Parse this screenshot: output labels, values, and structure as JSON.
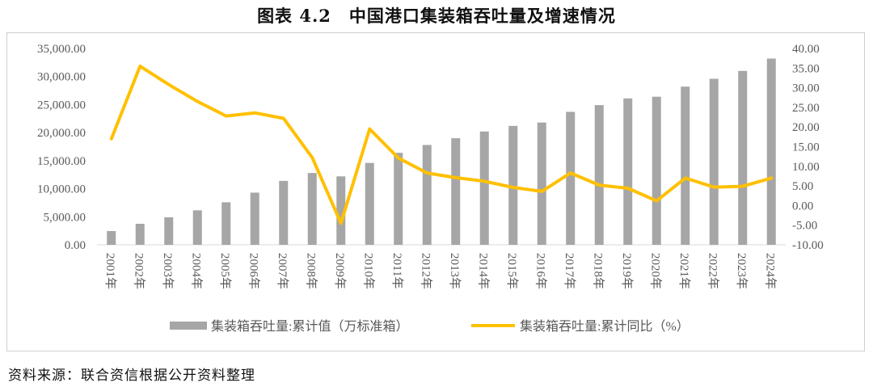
{
  "title": "图表 4.2　中国港口集装箱吞吐量及增速情况",
  "source": "资料来源：联合资信根据公开资料整理",
  "colors": {
    "bar": "#a6a6a6",
    "line": "#ffc000",
    "axis": "#d9d9d9",
    "text": "#595959"
  },
  "chart_data": {
    "type": "bar",
    "categories": [
      "2001年",
      "2002年",
      "2003年",
      "2004年",
      "2005年",
      "2006年",
      "2007年",
      "2008年",
      "2009年",
      "2010年",
      "2011年",
      "2012年",
      "2013年",
      "2014年",
      "2015年",
      "2016年",
      "2017年",
      "2018年",
      "2019年",
      "2020年",
      "2021年",
      "2022年",
      "2023年",
      "2024年"
    ],
    "series": [
      {
        "name": "集装箱吞吐量:累计值（万标准箱）",
        "type": "bar",
        "axis": "left",
        "values": [
          2450,
          3750,
          4900,
          6150,
          7580,
          9300,
          11400,
          12800,
          12200,
          14600,
          16400,
          17800,
          19000,
          20200,
          21200,
          21800,
          23700,
          24900,
          26100,
          26400,
          28200,
          29600,
          31000,
          33200
        ]
      },
      {
        "name": "集装箱吞吐量:累计同比（%）",
        "type": "line",
        "axis": "right",
        "values": [
          17.0,
          35.5,
          30.8,
          26.5,
          22.8,
          23.6,
          22.2,
          12.2,
          -4.5,
          19.5,
          12.1,
          8.3,
          7.1,
          6.2,
          4.6,
          3.6,
          8.3,
          5.2,
          4.4,
          1.2,
          7.0,
          4.7,
          4.9,
          7.0
        ]
      }
    ],
    "yleft": {
      "min": 0,
      "max": 35000,
      "step": 5000,
      "ticks": [
        "0.00",
        "5,000.00",
        "10,000.00",
        "15,000.00",
        "20,000.00",
        "25,000.00",
        "30,000.00",
        "35,000.00"
      ]
    },
    "yright": {
      "min": -10,
      "max": 40,
      "step": 5,
      "ticks": [
        "-10.00",
        "-5.00",
        "0.00",
        "5.00",
        "10.00",
        "15.00",
        "20.00",
        "25.00",
        "30.00",
        "35.00",
        "40.00"
      ]
    },
    "legend_position": "bottom"
  }
}
